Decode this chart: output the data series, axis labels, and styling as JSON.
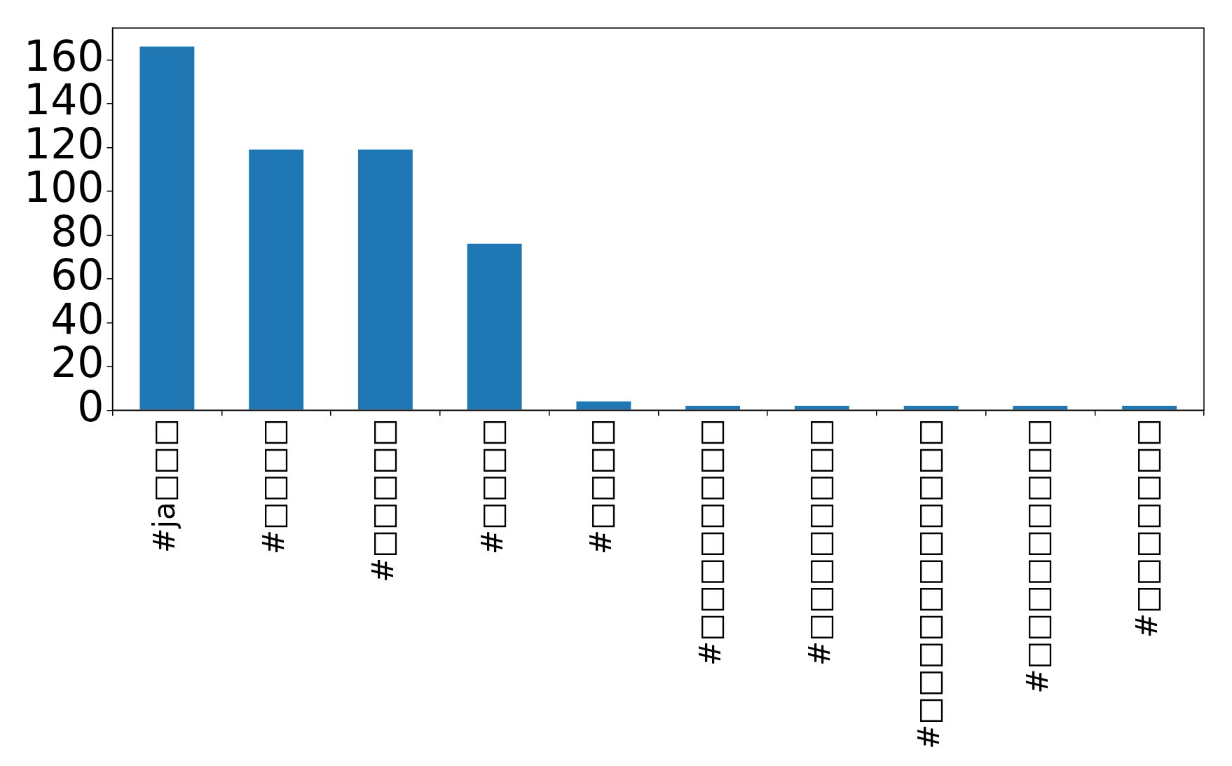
{
  "chart_data": {
    "type": "bar",
    "categories": [
      "#ja□□□",
      "#□□□□",
      "#□□□□□",
      "#□□□□",
      "#□□□□",
      "#□□□□□□□□",
      "#□□□□□□□□",
      "#□□□□□□□□□□□",
      "#□□□□□□□□□",
      "#□□□□□□□"
    ],
    "values": [
      166,
      119,
      119,
      76,
      4,
      2,
      2,
      2,
      2,
      2
    ],
    "color": "#1f77b4",
    "ylim": [
      0,
      174.5
    ],
    "yticks": [
      0,
      20,
      40,
      60,
      80,
      100,
      120,
      140,
      160
    ],
    "grid": false,
    "legend": false
  }
}
